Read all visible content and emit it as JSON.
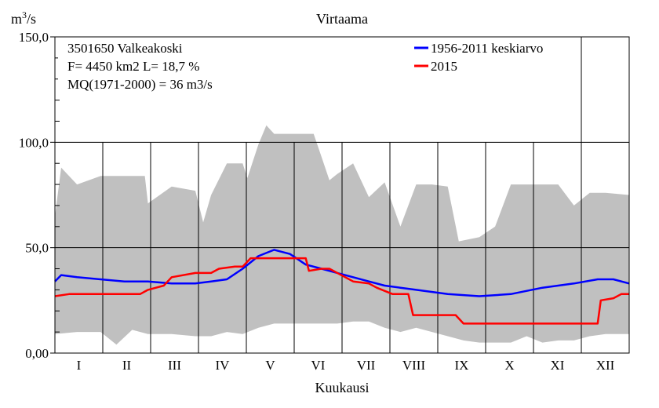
{
  "chart_data": {
    "type": "line",
    "title": "Virtaama",
    "ylabel_base": "m",
    "ylabel_sup": "3",
    "ylabel_tail": "/s",
    "xlabel": "Kuukausi",
    "ylim": [
      0,
      150
    ],
    "y_ticks": [
      "0,00",
      "50,0",
      "100,0",
      "150,0"
    ],
    "y_tick_values": [
      0,
      50,
      100,
      150
    ],
    "months": [
      "I",
      "II",
      "III",
      "IV",
      "V",
      "VI",
      "VII",
      "VIII",
      "IX",
      "X",
      "XI",
      "XII"
    ],
    "info": [
      "3501650 Valkeakoski",
      "F=   4450 km2 L=  18,7 %",
      "MQ(1971-2000) = 36 m3/s"
    ],
    "grid": true,
    "legend_position": "top-right",
    "series": [
      {
        "name": "1956-2011 keskiarvo",
        "color": "#0000ff",
        "points": [
          [
            1,
            34
          ],
          [
            5,
            37
          ],
          [
            15,
            36
          ],
          [
            30,
            35
          ],
          [
            45,
            34
          ],
          [
            60,
            34
          ],
          [
            75,
            33
          ],
          [
            90,
            33
          ],
          [
            100,
            34
          ],
          [
            110,
            35
          ],
          [
            120,
            40
          ],
          [
            130,
            46
          ],
          [
            140,
            49
          ],
          [
            150,
            47
          ],
          [
            160,
            42
          ],
          [
            170,
            40
          ],
          [
            180,
            38
          ],
          [
            190,
            36
          ],
          [
            200,
            34
          ],
          [
            210,
            32
          ],
          [
            220,
            31
          ],
          [
            230,
            30
          ],
          [
            250,
            28
          ],
          [
            270,
            27
          ],
          [
            290,
            28
          ],
          [
            310,
            31
          ],
          [
            330,
            33
          ],
          [
            345,
            35
          ],
          [
            355,
            35
          ],
          [
            365,
            33
          ]
        ]
      },
      {
        "name": "2015",
        "color": "#ff0000",
        "points": [
          [
            1,
            27
          ],
          [
            10,
            28
          ],
          [
            20,
            28
          ],
          [
            40,
            28
          ],
          [
            55,
            28
          ],
          [
            60,
            30
          ],
          [
            70,
            32
          ],
          [
            75,
            36
          ],
          [
            90,
            38
          ],
          [
            100,
            38
          ],
          [
            105,
            40
          ],
          [
            115,
            41
          ],
          [
            120,
            41
          ],
          [
            125,
            45
          ],
          [
            150,
            45
          ],
          [
            160,
            45
          ],
          [
            162,
            39
          ],
          [
            170,
            40
          ],
          [
            175,
            40
          ],
          [
            190,
            34
          ],
          [
            200,
            33
          ],
          [
            205,
            31
          ],
          [
            215,
            28
          ],
          [
            225,
            28
          ],
          [
            228,
            18
          ],
          [
            255,
            18
          ],
          [
            260,
            14
          ],
          [
            310,
            14
          ],
          [
            345,
            14
          ],
          [
            347,
            25
          ],
          [
            355,
            26
          ],
          [
            360,
            28
          ],
          [
            365,
            28
          ]
        ]
      }
    ],
    "envelope": {
      "label": "",
      "color": "#c0c0c0",
      "max": [
        [
          1,
          65
        ],
        [
          5,
          88
        ],
        [
          15,
          80
        ],
        [
          30,
          84
        ],
        [
          45,
          84
        ],
        [
          58,
          84
        ],
        [
          60,
          71
        ],
        [
          75,
          79
        ],
        [
          90,
          77
        ],
        [
          95,
          62
        ],
        [
          100,
          75
        ],
        [
          110,
          90
        ],
        [
          120,
          90
        ],
        [
          123,
          83
        ],
        [
          130,
          99
        ],
        [
          135,
          108
        ],
        [
          140,
          104
        ],
        [
          165,
          104
        ],
        [
          170,
          93
        ],
        [
          175,
          82
        ],
        [
          180,
          85
        ],
        [
          190,
          90
        ],
        [
          200,
          74
        ],
        [
          210,
          81
        ],
        [
          220,
          60
        ],
        [
          230,
          80
        ],
        [
          240,
          80
        ],
        [
          250,
          79
        ],
        [
          257,
          53
        ],
        [
          270,
          55
        ],
        [
          280,
          60
        ],
        [
          290,
          80
        ],
        [
          310,
          80
        ],
        [
          320,
          80
        ],
        [
          330,
          70
        ],
        [
          340,
          76
        ],
        [
          350,
          76
        ],
        [
          365,
          75
        ]
      ],
      "min": [
        [
          1,
          9
        ],
        [
          15,
          10
        ],
        [
          30,
          10
        ],
        [
          40,
          4
        ],
        [
          50,
          11
        ],
        [
          60,
          9
        ],
        [
          75,
          9
        ],
        [
          90,
          8
        ],
        [
          100,
          8
        ],
        [
          110,
          10
        ],
        [
          120,
          9
        ],
        [
          130,
          12
        ],
        [
          140,
          14
        ],
        [
          150,
          14
        ],
        [
          160,
          14
        ],
        [
          170,
          14
        ],
        [
          180,
          14
        ],
        [
          190,
          15
        ],
        [
          200,
          15
        ],
        [
          210,
          12
        ],
        [
          220,
          10
        ],
        [
          230,
          12
        ],
        [
          240,
          10
        ],
        [
          250,
          8
        ],
        [
          260,
          6
        ],
        [
          270,
          5
        ],
        [
          280,
          5
        ],
        [
          290,
          5
        ],
        [
          300,
          8
        ],
        [
          310,
          5
        ],
        [
          320,
          6
        ],
        [
          330,
          6
        ],
        [
          340,
          8
        ],
        [
          350,
          9
        ],
        [
          365,
          9
        ]
      ]
    }
  }
}
